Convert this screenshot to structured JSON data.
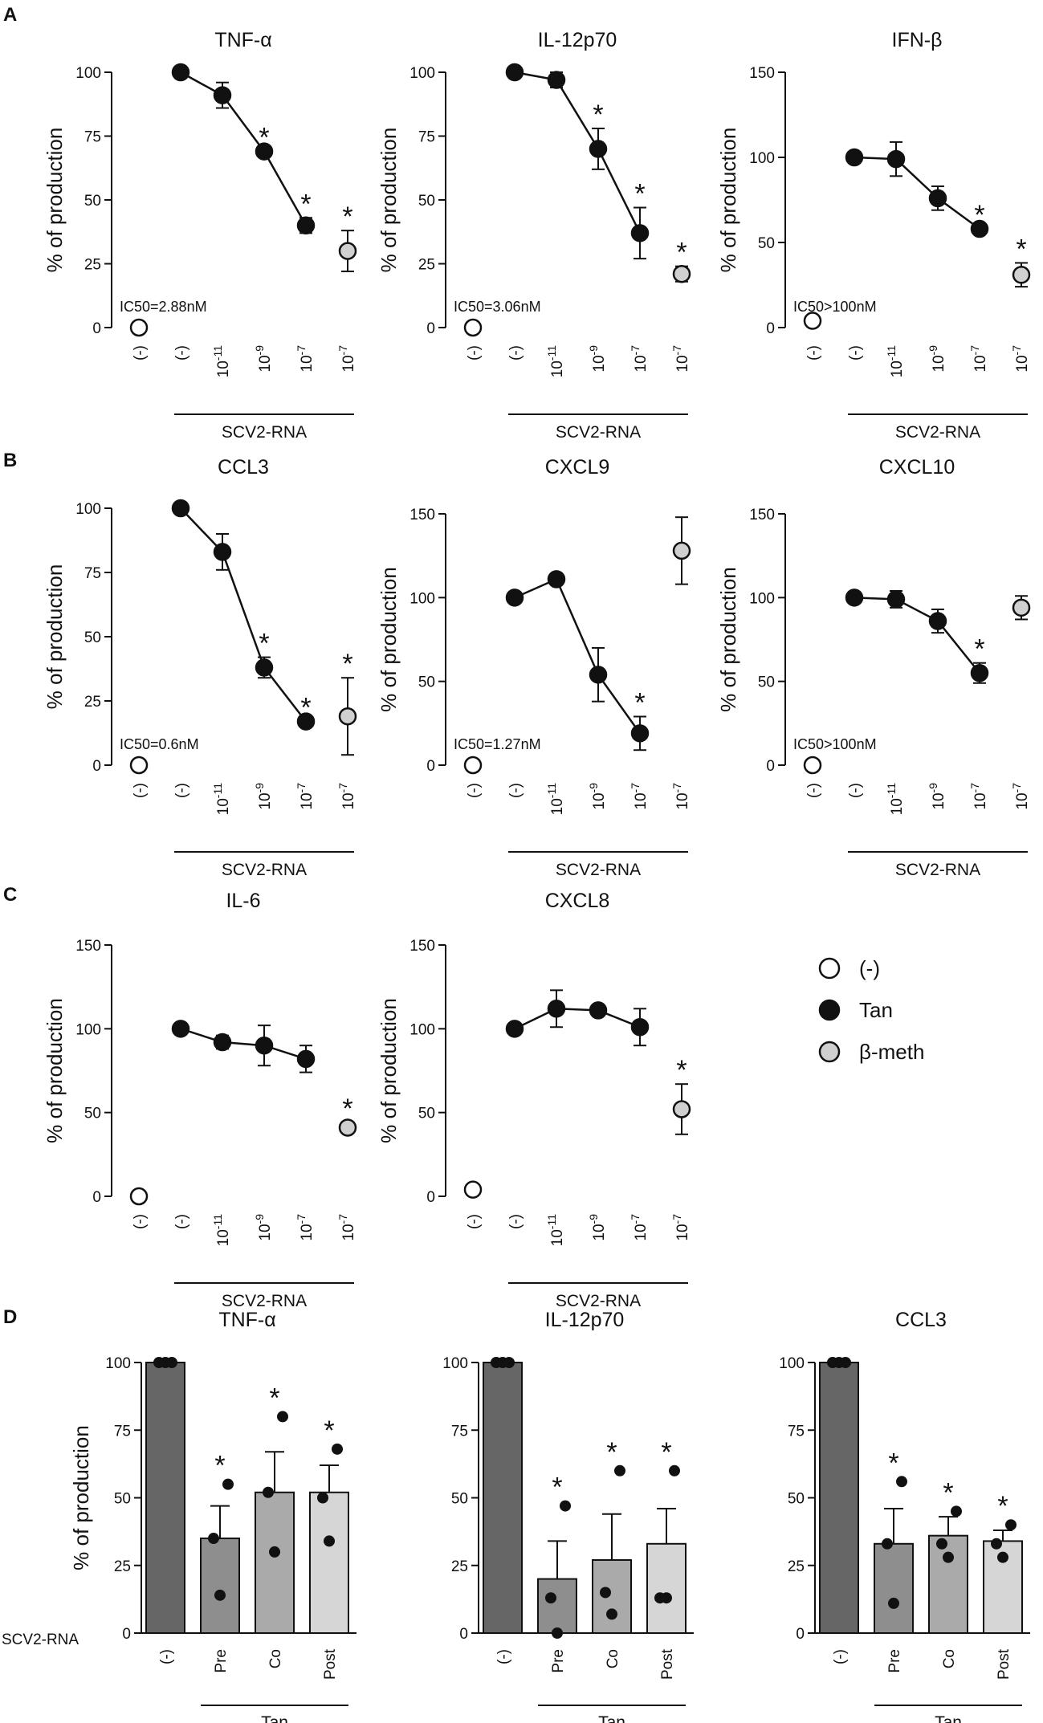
{
  "figure": {
    "panel_labels": [
      "A",
      "B",
      "C",
      "D"
    ],
    "ylabel": "% of production",
    "group_label": "SCV2-RNA",
    "row_label": "SCV2-RNA",
    "bar_group_label": "Tan",
    "legend": [
      {
        "label": "(-)",
        "fill": "#ffffff"
      },
      {
        "label": "Tan",
        "fill": "#111111"
      },
      {
        "label": "β-meth",
        "fill": "#d0d0d0"
      }
    ]
  },
  "chart_data": [
    {
      "type": "scatter",
      "panel": "A",
      "title": "TNF-α",
      "ylim": [
        0,
        100
      ],
      "yticks": [
        0,
        25,
        50,
        75,
        100
      ],
      "categories": [
        "(-)",
        "(-)",
        "10-11",
        "10-9",
        "10-7",
        "10-7"
      ],
      "ic50": "IC50=2.88nM",
      "series": [
        {
          "name": "(-)",
          "values": [
            0
          ]
        },
        {
          "name": "Tan",
          "values": [
            100,
            91,
            69,
            40
          ],
          "err": [
            0,
            5,
            0,
            3
          ]
        },
        {
          "name": "β-meth",
          "values": [
            30
          ],
          "err": [
            8
          ]
        }
      ],
      "significant": [
        false,
        false,
        false,
        true,
        true,
        true
      ]
    },
    {
      "type": "scatter",
      "panel": "A",
      "title": "IL-12p70",
      "ylim": [
        0,
        100
      ],
      "yticks": [
        0,
        25,
        50,
        75,
        100
      ],
      "categories": [
        "(-)",
        "(-)",
        "10-11",
        "10-9",
        "10-7",
        "10-7"
      ],
      "ic50": "IC50=3.06nM",
      "series": [
        {
          "name": "(-)",
          "values": [
            0
          ]
        },
        {
          "name": "Tan",
          "values": [
            100,
            97,
            70,
            37
          ],
          "err": [
            0,
            3,
            8,
            10
          ]
        },
        {
          "name": "β-meth",
          "values": [
            21
          ],
          "err": [
            3
          ]
        }
      ],
      "significant": [
        false,
        false,
        false,
        true,
        true,
        true
      ]
    },
    {
      "type": "scatter",
      "panel": "A",
      "title": "IFN-β",
      "ylim": [
        0,
        150
      ],
      "yticks": [
        0,
        50,
        100,
        150
      ],
      "categories": [
        "(-)",
        "(-)",
        "10-11",
        "10-9",
        "10-7",
        "10-7"
      ],
      "ic50": "IC50>100nM",
      "series": [
        {
          "name": "(-)",
          "values": [
            4
          ]
        },
        {
          "name": "Tan",
          "values": [
            100,
            99,
            76,
            58
          ],
          "err": [
            0,
            10,
            7,
            0
          ]
        },
        {
          "name": "β-meth",
          "values": [
            31
          ],
          "err": [
            7
          ]
        }
      ],
      "significant": [
        false,
        false,
        false,
        false,
        true,
        true
      ]
    },
    {
      "type": "scatter",
      "panel": "B",
      "title": "CCL3",
      "ylim": [
        0,
        100
      ],
      "yticks": [
        0,
        25,
        50,
        75,
        100
      ],
      "categories": [
        "(-)",
        "(-)",
        "10-11",
        "10-9",
        "10-7",
        "10-7"
      ],
      "ic50": "IC50=0.6nM",
      "series": [
        {
          "name": "(-)",
          "values": [
            0
          ]
        },
        {
          "name": "Tan",
          "values": [
            100,
            83,
            38,
            17
          ],
          "err": [
            0,
            7,
            4,
            0
          ]
        },
        {
          "name": "β-meth",
          "values": [
            19
          ],
          "err": [
            15
          ]
        }
      ],
      "significant": [
        false,
        false,
        false,
        true,
        true,
        true
      ]
    },
    {
      "type": "scatter",
      "panel": "B",
      "title": "CXCL9",
      "ylim": [
        0,
        150
      ],
      "yticks": [
        0,
        50,
        100,
        150
      ],
      "categories": [
        "(-)",
        "(-)",
        "10-11",
        "10-9",
        "10-7",
        "10-7"
      ],
      "ic50": "IC50=1.27nM",
      "series": [
        {
          "name": "(-)",
          "values": [
            0
          ]
        },
        {
          "name": "Tan",
          "values": [
            100,
            111,
            54,
            19
          ],
          "err": [
            0,
            0,
            16,
            10
          ]
        },
        {
          "name": "β-meth",
          "values": [
            128
          ],
          "err": [
            20
          ]
        }
      ],
      "significant": [
        false,
        false,
        false,
        false,
        true,
        false
      ]
    },
    {
      "type": "scatter",
      "panel": "B",
      "title": "CXCL10",
      "ylim": [
        0,
        150
      ],
      "yticks": [
        0,
        50,
        100,
        150
      ],
      "categories": [
        "(-)",
        "(-)",
        "10-11",
        "10-9",
        "10-7",
        "10-7"
      ],
      "ic50": "IC50>100nM",
      "series": [
        {
          "name": "(-)",
          "values": [
            0
          ]
        },
        {
          "name": "Tan",
          "values": [
            100,
            99,
            86,
            55
          ],
          "err": [
            0,
            5,
            7,
            6
          ]
        },
        {
          "name": "β-meth",
          "values": [
            94
          ],
          "err": [
            7
          ]
        }
      ],
      "significant": [
        false,
        false,
        false,
        false,
        true,
        false
      ]
    },
    {
      "type": "scatter",
      "panel": "C",
      "title": "IL-6",
      "ylim": [
        0,
        150
      ],
      "yticks": [
        0,
        50,
        100,
        150
      ],
      "categories": [
        "(-)",
        "(-)",
        "10-11",
        "10-9",
        "10-7",
        "10-7"
      ],
      "ic50": "",
      "series": [
        {
          "name": "(-)",
          "values": [
            0
          ]
        },
        {
          "name": "Tan",
          "values": [
            100,
            92,
            90,
            82
          ],
          "err": [
            0,
            4,
            12,
            8
          ]
        },
        {
          "name": "β-meth",
          "values": [
            41
          ],
          "err": [
            3
          ]
        }
      ],
      "significant": [
        false,
        false,
        false,
        false,
        false,
        true
      ]
    },
    {
      "type": "scatter",
      "panel": "C",
      "title": "CXCL8",
      "ylim": [
        0,
        150
      ],
      "yticks": [
        0,
        50,
        100,
        150
      ],
      "categories": [
        "(-)",
        "(-)",
        "10-11",
        "10-9",
        "10-7",
        "10-7"
      ],
      "ic50": "",
      "series": [
        {
          "name": "(-)",
          "values": [
            4
          ]
        },
        {
          "name": "Tan",
          "values": [
            100,
            112,
            111,
            101
          ],
          "err": [
            0,
            11,
            0,
            11
          ]
        },
        {
          "name": "β-meth",
          "values": [
            52
          ],
          "err": [
            15
          ]
        }
      ],
      "significant": [
        false,
        false,
        false,
        false,
        false,
        true
      ]
    },
    {
      "type": "bar",
      "panel": "D",
      "title": "TNF-α",
      "ylim": [
        0,
        100
      ],
      "yticks": [
        0,
        25,
        50,
        75,
        100
      ],
      "categories": [
        "(-)",
        "Pre",
        "Co",
        "Post"
      ],
      "values": [
        100,
        35,
        52,
        52
      ],
      "err": [
        0,
        12,
        15,
        10
      ],
      "points": [
        [
          100,
          100,
          100
        ],
        [
          14,
          35,
          55
        ],
        [
          30,
          52,
          80
        ],
        [
          34,
          50,
          68
        ]
      ],
      "significant": [
        false,
        true,
        true,
        true
      ],
      "colors": [
        "#666666",
        "#8e8e8e",
        "#aaaaaa",
        "#d6d6d6"
      ]
    },
    {
      "type": "bar",
      "panel": "D",
      "title": "IL-12p70",
      "ylim": [
        0,
        100
      ],
      "yticks": [
        0,
        25,
        50,
        75,
        100
      ],
      "categories": [
        "(-)",
        "Pre",
        "Co",
        "Post"
      ],
      "values": [
        100,
        20,
        27,
        33
      ],
      "err": [
        0,
        14,
        17,
        13
      ],
      "points": [
        [
          100,
          100,
          100
        ],
        [
          0,
          13,
          47
        ],
        [
          7,
          15,
          60
        ],
        [
          13,
          13,
          60
        ]
      ],
      "significant": [
        false,
        true,
        true,
        true
      ],
      "colors": [
        "#666666",
        "#8e8e8e",
        "#aaaaaa",
        "#d6d6d6"
      ]
    },
    {
      "type": "bar",
      "panel": "D",
      "title": "CCL3",
      "ylim": [
        0,
        100
      ],
      "yticks": [
        0,
        25,
        50,
        75,
        100
      ],
      "categories": [
        "(-)",
        "Pre",
        "Co",
        "Post"
      ],
      "values": [
        100,
        33,
        36,
        34
      ],
      "err": [
        0,
        13,
        7,
        4
      ],
      "points": [
        [
          100,
          100,
          100
        ],
        [
          11,
          33,
          56
        ],
        [
          28,
          33,
          45
        ],
        [
          28,
          33,
          40
        ]
      ],
      "significant": [
        false,
        true,
        true,
        true
      ],
      "colors": [
        "#666666",
        "#8e8e8e",
        "#aaaaaa",
        "#d6d6d6"
      ]
    }
  ]
}
